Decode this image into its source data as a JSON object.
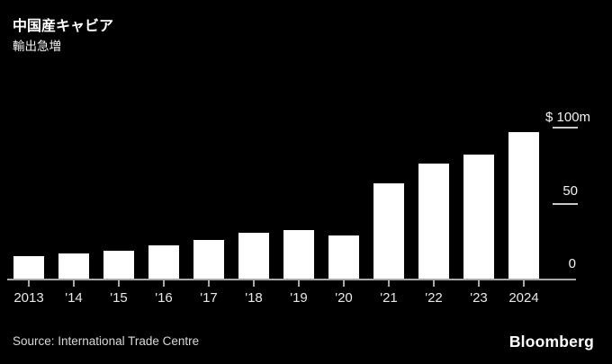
{
  "header": {
    "title": "中国産キャビア",
    "subtitle": "輸出急増"
  },
  "footer": {
    "source": "Source: International Trade Centre",
    "brand": "Bloomberg"
  },
  "colors": {
    "background": "#000000",
    "bar": "#ffffff",
    "axis": "#a8a8a8",
    "tick_dash": "#c9c9c9",
    "title_text": "#ffffff",
    "axis_text": "#e8e8e8"
  },
  "chart_data": {
    "type": "bar",
    "title": "中国産キャビア",
    "subtitle": "輸出急増",
    "categories": [
      "2013",
      "'14",
      "'15",
      "'16",
      "'17",
      "'18",
      "'19",
      "'20",
      "'21",
      "'22",
      "'23",
      "2024"
    ],
    "values": [
      15,
      17,
      18.5,
      22.5,
      26,
      30.5,
      32.5,
      29,
      64,
      77,
      83,
      98
    ],
    "unit": "$m",
    "xlabel": "",
    "ylabel": "",
    "ylim": [
      0,
      100
    ],
    "grid": false,
    "legend": false,
    "y_axis_side": "right",
    "y_ticks": [
      {
        "label": "$ 100m",
        "value": 100
      },
      {
        "label": "50",
        "value": 50
      },
      {
        "label": "0",
        "value": 0
      }
    ]
  }
}
